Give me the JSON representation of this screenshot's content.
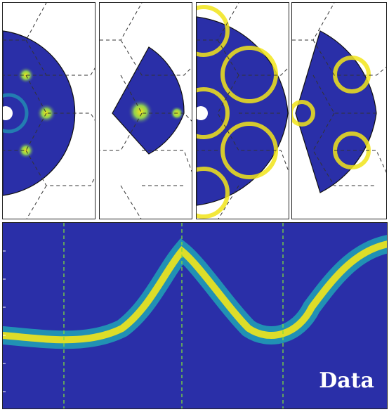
{
  "colors": {
    "background_low": "#2a2fa8",
    "mid": "#1fb3b8",
    "high": "#f2e51a",
    "hex_grid": "#333333",
    "vertical_marker": "#7fdc3a"
  },
  "top_row": {
    "panels": [
      {
        "name": "panel-1-half-disk"
      },
      {
        "name": "panel-2-sector"
      },
      {
        "name": "panel-3-half-disk-rings"
      },
      {
        "name": "panel-4-sector-rings"
      }
    ]
  },
  "bottom_panel": {
    "label": "Data"
  }
}
